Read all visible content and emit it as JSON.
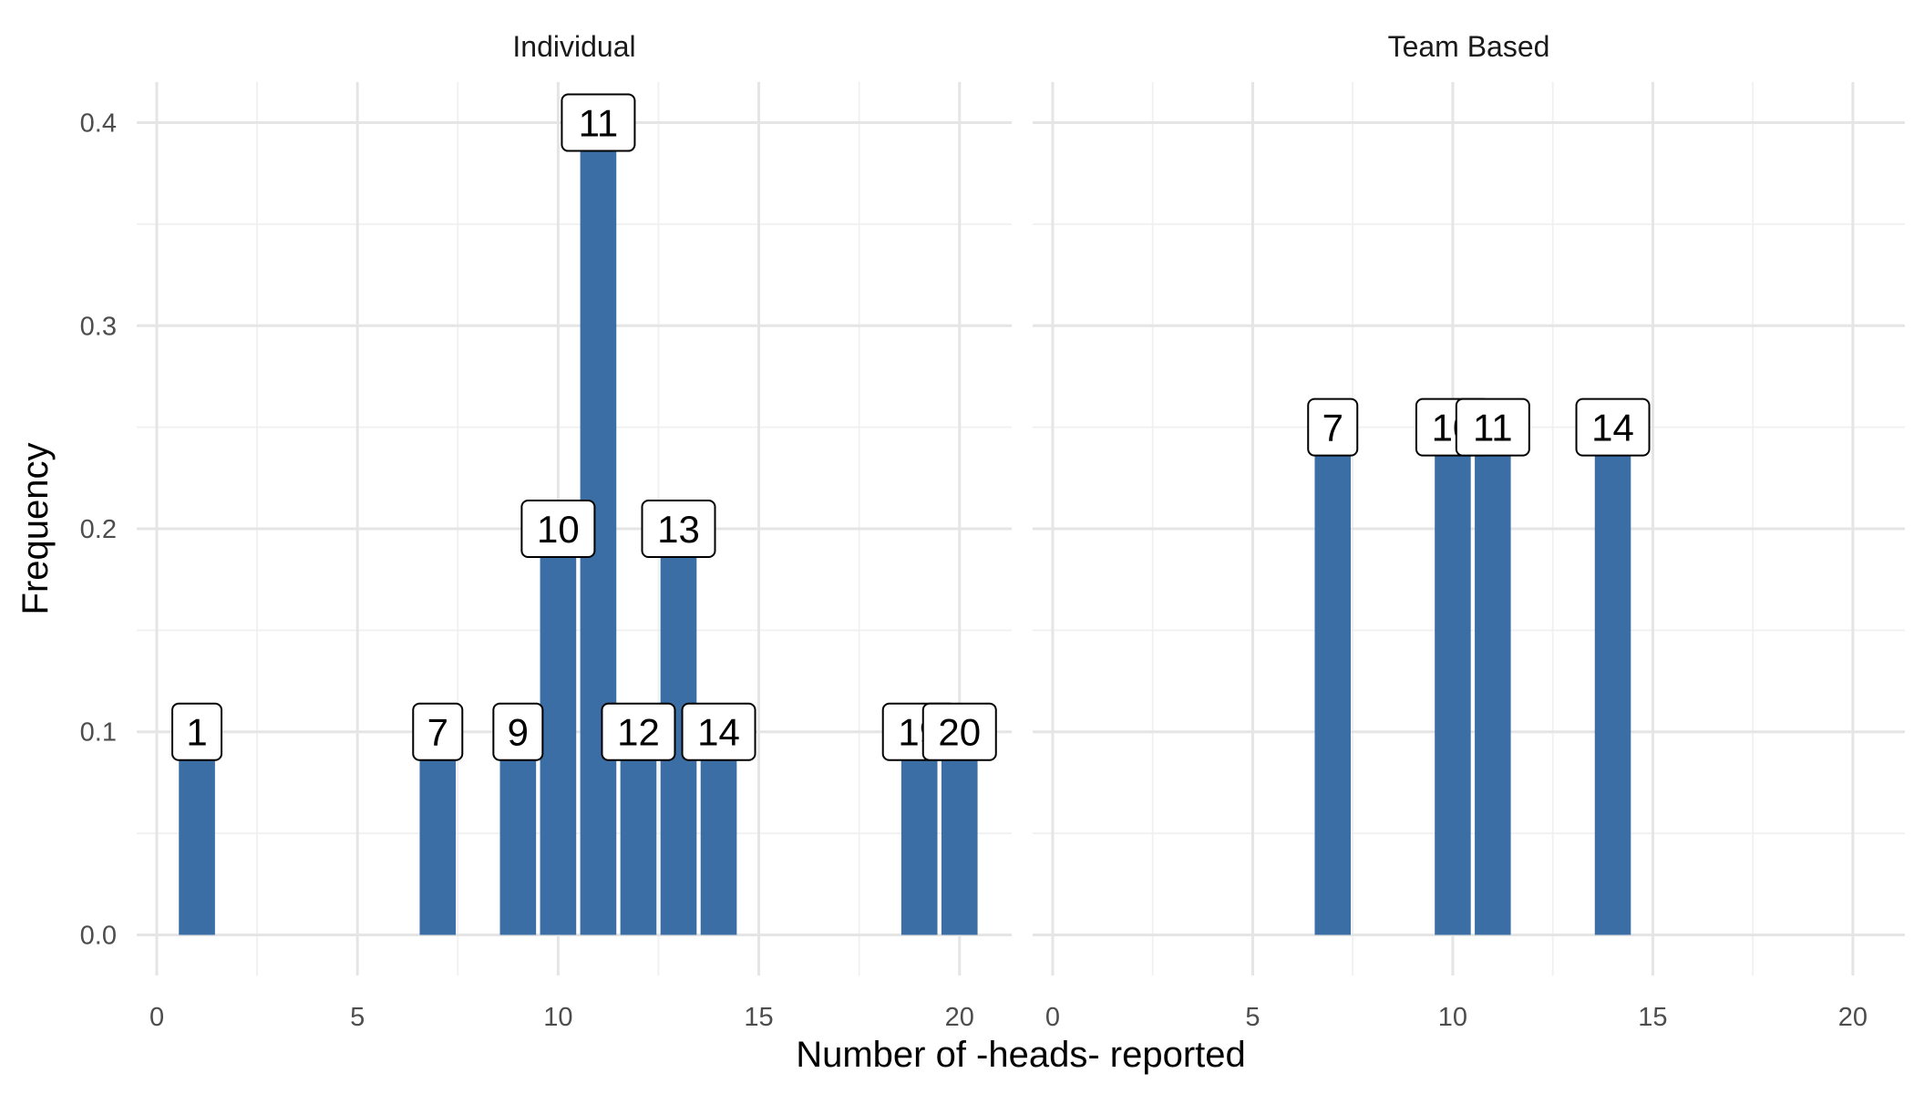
{
  "chart_data": {
    "type": "bar",
    "xlabel": "Number of -heads- reported",
    "ylabel": "Frequency",
    "xlim": [
      -0.5,
      21.3
    ],
    "ylim": [
      -0.02,
      0.42
    ],
    "x_ticks": [
      0,
      5,
      10,
      15,
      20
    ],
    "y_ticks": [
      0.0,
      0.1,
      0.2,
      0.3,
      0.4
    ],
    "y_tick_labels": [
      "0.0",
      "0.1",
      "0.2",
      "0.3",
      "0.4"
    ],
    "grid": true,
    "bar_color": "#3a6ea5",
    "panels": [
      {
        "strip": "Individual",
        "x": [
          1,
          7,
          9,
          10,
          11,
          12,
          13,
          14,
          19,
          20
        ],
        "values": [
          0.1,
          0.1,
          0.1,
          0.2,
          0.4,
          0.1,
          0.2,
          0.1,
          0.1,
          0.1
        ],
        "labels": [
          "1",
          "7",
          "9",
          "10",
          "11",
          "12",
          "13",
          "14",
          "19",
          "20"
        ]
      },
      {
        "strip": "Team Based",
        "x": [
          7,
          10,
          11,
          14
        ],
        "values": [
          0.25,
          0.25,
          0.25,
          0.25
        ],
        "labels": [
          "7",
          "10",
          "11",
          "14"
        ]
      }
    ]
  }
}
